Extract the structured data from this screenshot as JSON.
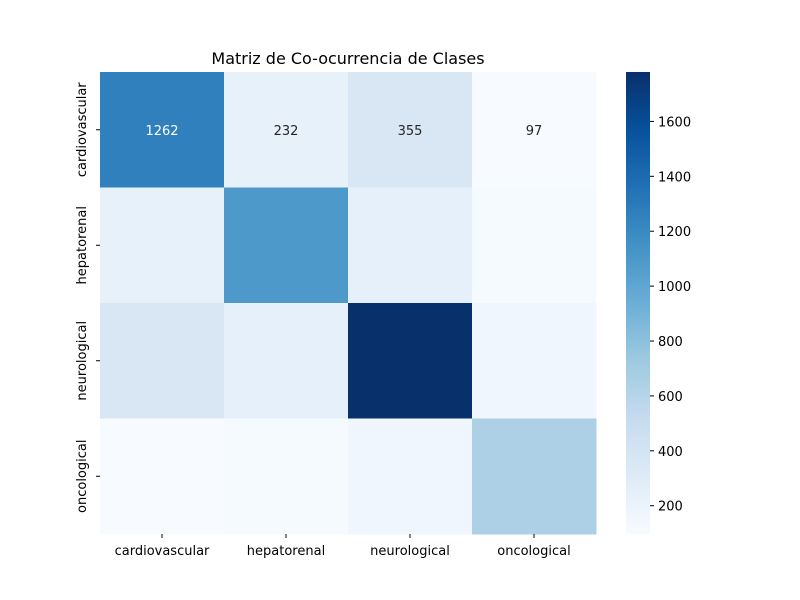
{
  "chart_data": {
    "type": "heatmap",
    "title": "Matriz de Co-ocurrencia de Clases",
    "xlabel": "",
    "ylabel": "",
    "x_categories": [
      "cardiovascular",
      "hepatorenal",
      "neurological",
      "oncological"
    ],
    "y_categories": [
      "cardiovascular",
      "hepatorenal",
      "neurological",
      "oncological"
    ],
    "values": [
      [
        1262,
        232,
        355,
        97
      ],
      [
        232,
        1090,
        240,
        110
      ],
      [
        355,
        240,
        1780,
        160
      ],
      [
        97,
        110,
        160,
        650
      ]
    ],
    "annotations": [
      [
        "1262",
        "232",
        "355",
        "97"
      ],
      [
        "",
        "",
        "",
        ""
      ],
      [
        "",
        "",
        "",
        ""
      ],
      [
        "",
        "",
        "",
        ""
      ]
    ],
    "colormap": "Blues",
    "colorbar": {
      "min": 97,
      "max": 1780,
      "ticks": [
        200,
        400,
        600,
        800,
        1000,
        1200,
        1400,
        1600
      ],
      "tick_labels": [
        "200",
        "400",
        "600",
        "800",
        "1000",
        "1200",
        "1400",
        "1600"
      ]
    },
    "grid": false
  }
}
